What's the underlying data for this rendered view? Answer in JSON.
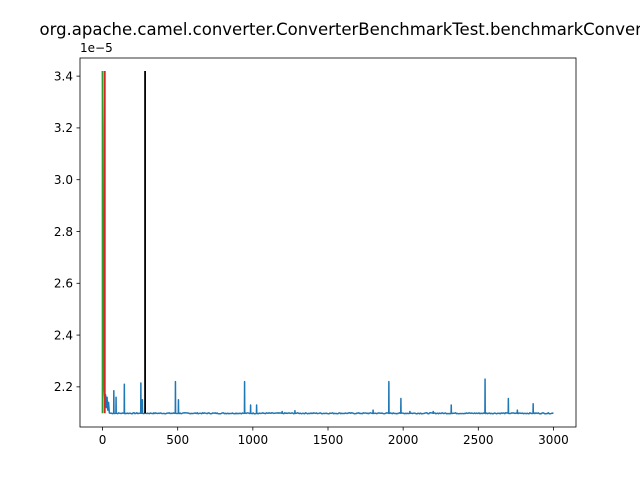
{
  "chart_data": {
    "type": "line",
    "title": "org.apache.camel.converter.ConverterBenchmarkTest.benchmarkConversionI",
    "xlabel": "",
    "ylabel": "",
    "y_offset_label": "1e−5",
    "xlim": [
      -150,
      3150
    ],
    "ylim": [
      2.045,
      3.47
    ],
    "y_scale_factor": 1e-05,
    "x_ticks": [
      0,
      500,
      1000,
      1500,
      2000,
      2500,
      3000
    ],
    "x_tick_labels": [
      "0",
      "500",
      "1000",
      "1500",
      "2000",
      "2500",
      "3000"
    ],
    "y_ticks": [
      2.2,
      2.4,
      2.6,
      2.8,
      3.0,
      3.2,
      3.4
    ],
    "y_tick_labels": [
      "2.2",
      "2.4",
      "2.6",
      "2.8",
      "3.0",
      "3.2",
      "3.4"
    ],
    "grid": false,
    "series": [
      {
        "color": "#1f77b4",
        "baseline": 2.098,
        "x_end": 3000,
        "initial_points": [
          [
            0,
            3.42
          ],
          [
            3,
            3.2
          ],
          [
            6,
            2.6
          ],
          [
            10,
            2.2
          ],
          [
            15,
            2.15
          ],
          [
            20,
            2.17
          ],
          [
            25,
            2.12
          ],
          [
            30,
            2.16
          ],
          [
            35,
            2.11
          ],
          [
            40,
            2.14
          ],
          [
            45,
            2.1
          ],
          [
            50,
            2.098
          ]
        ],
        "spikes": [
          [
            75,
            2.185
          ],
          [
            90,
            2.16
          ],
          [
            145,
            2.21
          ],
          [
            255,
            2.215
          ],
          [
            265,
            2.15
          ],
          [
            485,
            2.22
          ],
          [
            505,
            2.15
          ],
          [
            945,
            2.22
          ],
          [
            985,
            2.13
          ],
          [
            1025,
            2.13
          ],
          [
            1195,
            2.105
          ],
          [
            1280,
            2.108
          ],
          [
            1800,
            2.11
          ],
          [
            1905,
            2.22
          ],
          [
            1985,
            2.155
          ],
          [
            2045,
            2.105
          ],
          [
            2200,
            2.105
          ],
          [
            2320,
            2.13
          ],
          [
            2545,
            2.23
          ],
          [
            2700,
            2.155
          ],
          [
            2760,
            2.11
          ],
          [
            2865,
            2.135
          ]
        ]
      }
    ],
    "vlines": [
      {
        "x": 0,
        "y": [
          2.098,
          3.42
        ],
        "color": "#2ca02c"
      },
      {
        "x": 15,
        "y": [
          2.098,
          3.42
        ],
        "color": "#d62728"
      },
      {
        "x": 283,
        "y": [
          2.098,
          3.42
        ],
        "color": "#000000"
      }
    ]
  }
}
